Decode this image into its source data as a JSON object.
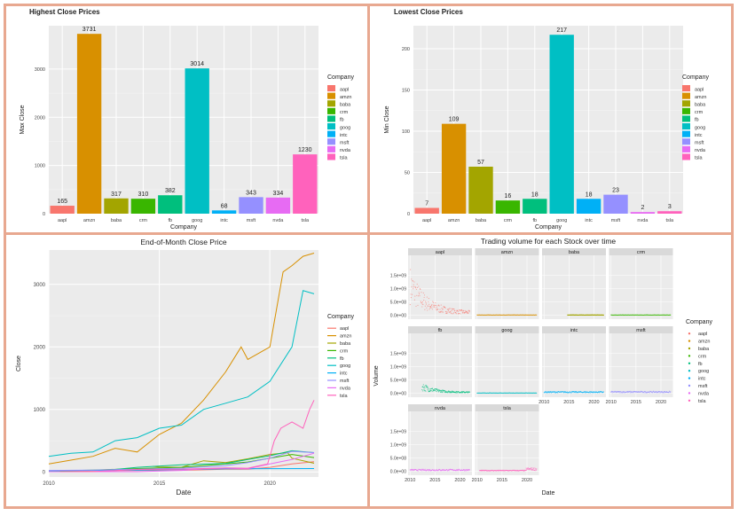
{
  "companies": [
    "aapl",
    "amzn",
    "baba",
    "crm",
    "fb",
    "goog",
    "intc",
    "msft",
    "nvda",
    "tsla"
  ],
  "colors": [
    "#F8766D",
    "#D89000",
    "#A3A500",
    "#39B600",
    "#00BF7D",
    "#00BFC4",
    "#00B0F6",
    "#9590FF",
    "#E76BF3",
    "#FF62BC"
  ],
  "legend_title": "Company",
  "chart_data": [
    {
      "type": "bar",
      "title": "Highest Close Prices",
      "xlabel": "Company",
      "ylabel": "Max Close",
      "categories": [
        "aapl",
        "amzn",
        "baba",
        "crm",
        "fb",
        "goog",
        "intc",
        "msft",
        "nvda",
        "tsla"
      ],
      "values": [
        165,
        3731,
        317,
        310,
        382,
        3014,
        68,
        343,
        334,
        1230
      ],
      "ylim": [
        0,
        3900
      ],
      "yticks": [
        0,
        1000,
        2000,
        3000
      ],
      "legend": "right"
    },
    {
      "type": "bar",
      "title": "Lowest Close Prices",
      "xlabel": "Company",
      "ylabel": "Min Close",
      "categories": [
        "aapl",
        "amzn",
        "baba",
        "crm",
        "fb",
        "goog",
        "intc",
        "msft",
        "nvda",
        "tsla"
      ],
      "values": [
        7,
        109,
        57,
        16,
        18,
        217,
        18,
        23,
        2,
        3
      ],
      "ylim": [
        0,
        228
      ],
      "yticks": [
        0,
        50,
        100,
        150,
        200
      ],
      "legend": "right"
    },
    {
      "type": "line",
      "title": "End-of-Month Close Price",
      "xlabel": "Date",
      "ylabel": "Close",
      "xlim": [
        2010,
        2022.2
      ],
      "xticks": [
        2010,
        2015,
        2020
      ],
      "ylim": [
        -80,
        3550
      ],
      "yticks": [
        0,
        1000,
        2000,
        3000
      ],
      "legend": "right",
      "series": [
        {
          "name": "aapl",
          "x": [
            2010,
            2012,
            2014,
            2016,
            2018,
            2019,
            2020,
            2021,
            2022
          ],
          "y": [
            7,
            20,
            25,
            27,
            45,
            45,
            75,
            130,
            165
          ]
        },
        {
          "name": "amzn",
          "x": [
            2010,
            2011,
            2012,
            2013,
            2014,
            2015,
            2016,
            2017,
            2018,
            2018.7,
            2019,
            2020,
            2020.6,
            2021,
            2021.5,
            2022
          ],
          "y": [
            130,
            190,
            250,
            380,
            320,
            600,
            780,
            1150,
            1600,
            2000,
            1800,
            2000,
            3200,
            3300,
            3450,
            3500
          ]
        },
        {
          "name": "baba",
          "x": [
            2014.7,
            2015,
            2016,
            2017,
            2018,
            2019,
            2020,
            2020.8,
            2021,
            2022
          ],
          "y": [
            90,
            80,
            75,
            180,
            150,
            210,
            280,
            310,
            220,
            140
          ]
        },
        {
          "name": "crm",
          "x": [
            2010,
            2012,
            2014,
            2016,
            2018,
            2019,
            2020,
            2021,
            2022
          ],
          "y": [
            16,
            30,
            55,
            75,
            130,
            160,
            220,
            280,
            230
          ]
        },
        {
          "name": "fb",
          "x": [
            2012.4,
            2013,
            2014,
            2016,
            2018,
            2019,
            2020,
            2021,
            2022
          ],
          "y": [
            30,
            40,
            75,
            115,
            135,
            200,
            260,
            340,
            310
          ]
        },
        {
          "name": "goog",
          "x": [
            2010,
            2011,
            2012,
            2013,
            2014,
            2015,
            2016,
            2017,
            2018,
            2019,
            2020,
            2021,
            2021.5,
            2022
          ],
          "y": [
            250,
            300,
            320,
            500,
            550,
            700,
            750,
            1000,
            1100,
            1200,
            1450,
            2000,
            2900,
            2850
          ]
        },
        {
          "name": "intc",
          "x": [
            2010,
            2014,
            2018,
            2022
          ],
          "y": [
            20,
            30,
            50,
            55
          ]
        },
        {
          "name": "msft",
          "x": [
            2010,
            2012,
            2014,
            2016,
            2018,
            2019,
            2020,
            2021,
            2022
          ],
          "y": [
            25,
            30,
            45,
            60,
            100,
            150,
            220,
            330,
            310
          ]
        },
        {
          "name": "nvda",
          "x": [
            2010,
            2014,
            2016,
            2017,
            2018,
            2019,
            2020,
            2021,
            2022
          ],
          "y": [
            5,
            5,
            25,
            50,
            60,
            50,
            130,
            200,
            300
          ]
        },
        {
          "name": "tsla",
          "x": [
            2010.5,
            2012,
            2014,
            2016,
            2018,
            2019,
            2019.9,
            2020.2,
            2020.5,
            2021,
            2021.5,
            2021.8,
            2022
          ],
          "y": [
            5,
            7,
            40,
            45,
            65,
            60,
            130,
            500,
            700,
            800,
            700,
            1000,
            1150
          ]
        }
      ]
    },
    {
      "type": "scatter",
      "title": "Trading volume for each Stock over time",
      "xlabel": "Date",
      "ylabel": "Volume",
      "xlim": [
        2009.6,
        2022.4
      ],
      "xticks": [
        2010,
        2015,
        2020
      ],
      "xtick_labels": [
        "2010",
        "2015",
        "2020"
      ],
      "ylim": [
        -150000000.0,
        2250000000.0
      ],
      "yticks": [
        0,
        500000000,
        1000000000,
        1500000000
      ],
      "ytick_labels": [
        "0.0e+00",
        "5.0e+08",
        "1.0e+09",
        "1.5e+09"
      ],
      "legend": "right",
      "facets": [
        "aapl",
        "amzn",
        "baba",
        "crm",
        "fb",
        "goog",
        "intc",
        "msft",
        "nvda",
        "tsla"
      ]
    }
  ]
}
